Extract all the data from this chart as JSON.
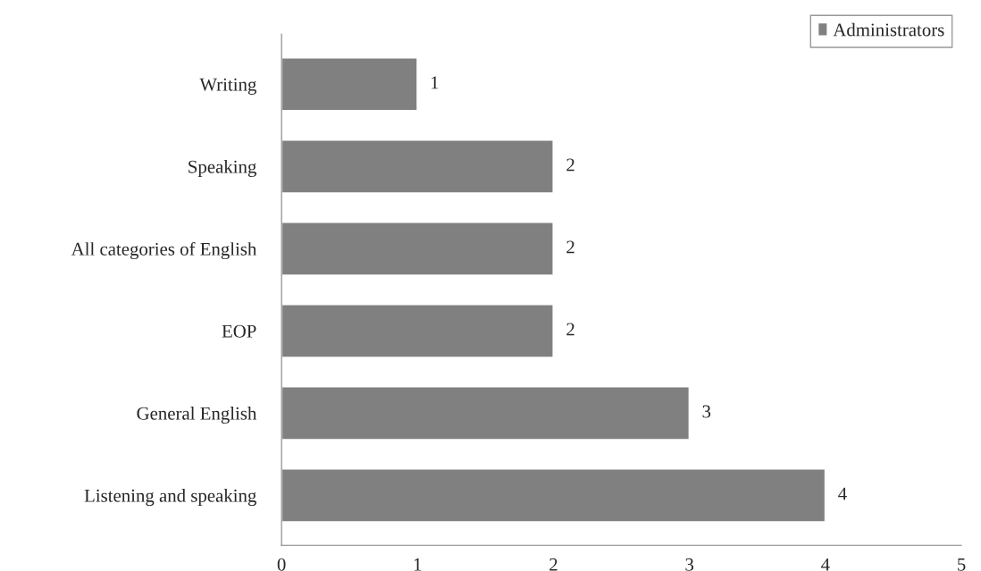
{
  "chart_data": {
    "type": "bar",
    "orientation": "horizontal",
    "categories": [
      "Writing",
      "Speaking",
      "All categories of English",
      "EOP",
      "General English",
      "Listening and speaking"
    ],
    "series": [
      {
        "name": "Administrators",
        "color": "#808080",
        "values": [
          1,
          2,
          2,
          2,
          3,
          4
        ]
      }
    ],
    "xlim": [
      0,
      5
    ],
    "xticks": [
      0,
      1,
      2,
      3,
      4,
      5
    ],
    "data_labels": true,
    "legend": "top right",
    "grid": false
  }
}
